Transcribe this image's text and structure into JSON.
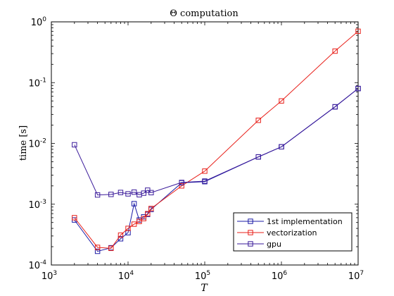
{
  "chart_data": {
    "type": "line",
    "title": "Θ computation",
    "xlabel": "T",
    "ylabel": "time [s]",
    "x_scale": "log",
    "y_scale": "log",
    "xlim": [
      1000,
      10000000
    ],
    "ylim": [
      0.0001,
      1
    ],
    "x_ticks": [
      {
        "value": 1000,
        "base": "10",
        "exp": "3"
      },
      {
        "value": 10000,
        "base": "10",
        "exp": "4"
      },
      {
        "value": 100000,
        "base": "10",
        "exp": "5"
      },
      {
        "value": 1000000,
        "base": "10",
        "exp": "6"
      },
      {
        "value": 10000000,
        "base": "10",
        "exp": "7"
      }
    ],
    "y_ticks": [
      {
        "value": 0.0001,
        "base": "10",
        "exp": "-4"
      },
      {
        "value": 0.001,
        "base": "10",
        "exp": "-3"
      },
      {
        "value": 0.01,
        "base": "10",
        "exp": "-2"
      },
      {
        "value": 0.1,
        "base": "10",
        "exp": "-1"
      },
      {
        "value": 1,
        "base": "10",
        "exp": "0"
      }
    ],
    "grid": false,
    "legend_position": "bottom-right",
    "series": [
      {
        "name": "1st implementation",
        "color": "#1a1aa6",
        "marker": "square",
        "points": [
          [
            2000,
            0.00055
          ],
          [
            4000,
            0.000168
          ],
          [
            6000,
            0.000192
          ],
          [
            8000,
            0.00027
          ],
          [
            10000,
            0.00034
          ],
          [
            12000,
            0.00102
          ],
          [
            14000,
            0.00055
          ],
          [
            16000,
            0.00062
          ],
          [
            18000,
            0.00068
          ],
          [
            20000,
            0.00082
          ],
          [
            50000,
            0.00225
          ],
          [
            100000,
            0.00235
          ],
          [
            500000,
            0.006
          ],
          [
            1000000,
            0.0088
          ],
          [
            5000000,
            0.04
          ],
          [
            10000000,
            0.08
          ]
        ]
      },
      {
        "name": "vectorization",
        "color": "#e8201a",
        "marker": "square",
        "points": [
          [
            2000,
            0.0006
          ],
          [
            4000,
            0.000195
          ],
          [
            6000,
            0.000188
          ],
          [
            8000,
            0.00031
          ],
          [
            10000,
            0.0004
          ],
          [
            12000,
            0.00047
          ],
          [
            14000,
            0.00052
          ],
          [
            16000,
            0.00058
          ],
          [
            18000,
            0.0007
          ],
          [
            20000,
            0.00085
          ],
          [
            50000,
            0.002
          ],
          [
            100000,
            0.0035
          ],
          [
            500000,
            0.024
          ],
          [
            1000000,
            0.05
          ],
          [
            5000000,
            0.33
          ],
          [
            10000000,
            0.7
          ]
        ]
      },
      {
        "name": "gpu",
        "color": "#3a1a9a",
        "marker": "square",
        "points": [
          [
            2000,
            0.0095
          ],
          [
            4000,
            0.00142
          ],
          [
            6000,
            0.00145
          ],
          [
            8000,
            0.00156
          ],
          [
            10000,
            0.00148
          ],
          [
            12000,
            0.00158
          ],
          [
            14000,
            0.00143
          ],
          [
            16000,
            0.00152
          ],
          [
            18000,
            0.0017
          ],
          [
            20000,
            0.00155
          ],
          [
            50000,
            0.00228
          ],
          [
            100000,
            0.0024
          ],
          [
            500000,
            0.006
          ],
          [
            1000000,
            0.0088
          ],
          [
            5000000,
            0.04
          ],
          [
            10000000,
            0.08
          ]
        ]
      }
    ]
  }
}
